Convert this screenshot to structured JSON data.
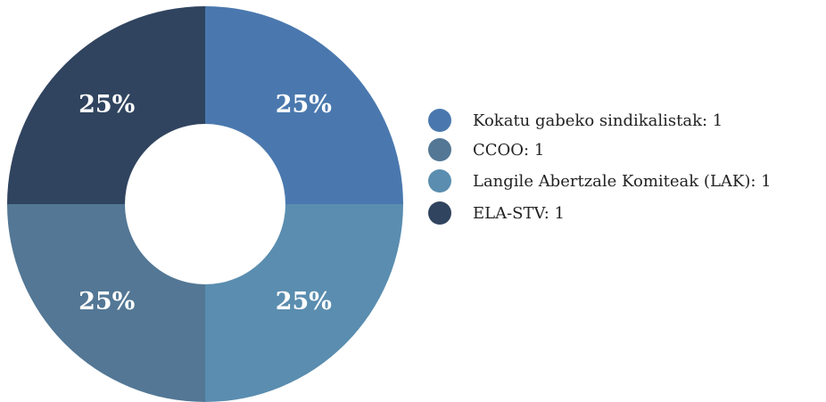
{
  "chart_data": {
    "type": "donut",
    "labels": [
      "Kokatu gabeko sindikalistak: 1",
      "CCOO: 1",
      "Langile Abertzale Komiteak (LAK): 1",
      "ELA-STV: 1"
    ],
    "values": [
      1,
      1,
      1,
      1
    ],
    "percentages": [
      25,
      25,
      25,
      25
    ],
    "value_labels": [
      "25%",
      "25%",
      "25%",
      "25%"
    ],
    "colors": [
      "#4a78ae",
      "#537795",
      "#5a8daf",
      "#30445f"
    ],
    "legend": "right"
  }
}
